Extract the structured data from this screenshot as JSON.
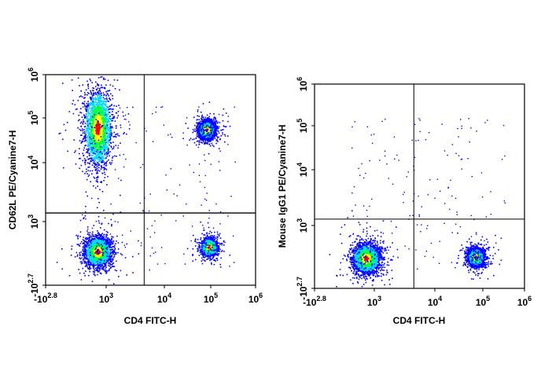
{
  "chart_data": [
    {
      "type": "scatter",
      "subtype": "flow-cytometry-density-plot",
      "xlabel": "CD4 FITC-H",
      "ylabel": "CD62L PE/Cyanine7-H",
      "x_scale": "biexponential",
      "y_scale": "biexponential",
      "x_ticks": [
        {
          "base": "-10",
          "exp": "2.8"
        },
        {
          "base": "10",
          "exp": "3"
        },
        {
          "base": "10",
          "exp": "4"
        },
        {
          "base": "10",
          "exp": "5"
        },
        {
          "base": "10",
          "exp": "6"
        }
      ],
      "y_ticks": [
        {
          "base": "-10",
          "exp": "2.7"
        },
        {
          "base": "10",
          "exp": "3"
        },
        {
          "base": "10",
          "exp": "4"
        },
        {
          "base": "10",
          "exp": "5"
        },
        {
          "base": "10",
          "exp": "6"
        }
      ],
      "quadrant_gate": {
        "x": 4500,
        "y": 1400
      },
      "populations": [
        {
          "x": 500,
          "y": 60000,
          "spread": "high",
          "density": "high"
        },
        {
          "x": 500,
          "y": 150,
          "spread": "medium",
          "density": "high"
        },
        {
          "x": 80000,
          "y": 55000,
          "spread": "low",
          "density": "very high"
        },
        {
          "x": 90000,
          "y": 200,
          "spread": "low",
          "density": "medium"
        }
      ],
      "grid": false
    },
    {
      "type": "scatter",
      "subtype": "flow-cytometry-density-plot",
      "xlabel": "CD4 FITC-H",
      "ylabel": "Mouse IgG1 PE/Cyanine7-H",
      "x_scale": "biexponential",
      "y_scale": "biexponential",
      "x_ticks": [
        {
          "base": "-10",
          "exp": "2.8"
        },
        {
          "base": "10",
          "exp": "3"
        },
        {
          "base": "10",
          "exp": "4"
        },
        {
          "base": "10",
          "exp": "5"
        },
        {
          "base": "10",
          "exp": "6"
        }
      ],
      "y_ticks": [
        {
          "base": "-10",
          "exp": "2.7"
        },
        {
          "base": "10",
          "exp": "3"
        },
        {
          "base": "10",
          "exp": "4"
        },
        {
          "base": "10",
          "exp": "5"
        },
        {
          "base": "10",
          "exp": "6"
        }
      ],
      "quadrant_gate": {
        "x": 4500,
        "y": 1300
      },
      "populations": [
        {
          "x": 500,
          "y": 120,
          "spread": "medium",
          "density": "very high"
        },
        {
          "x": 70000,
          "y": 130,
          "spread": "low",
          "density": "high"
        }
      ],
      "grid": false
    }
  ],
  "colors": {
    "density_low": "#0000ff",
    "density_mid": "#00d8ff",
    "density_mid2": "#00ff40",
    "density_high": "#ffff00",
    "density_max": "#ff0000"
  }
}
